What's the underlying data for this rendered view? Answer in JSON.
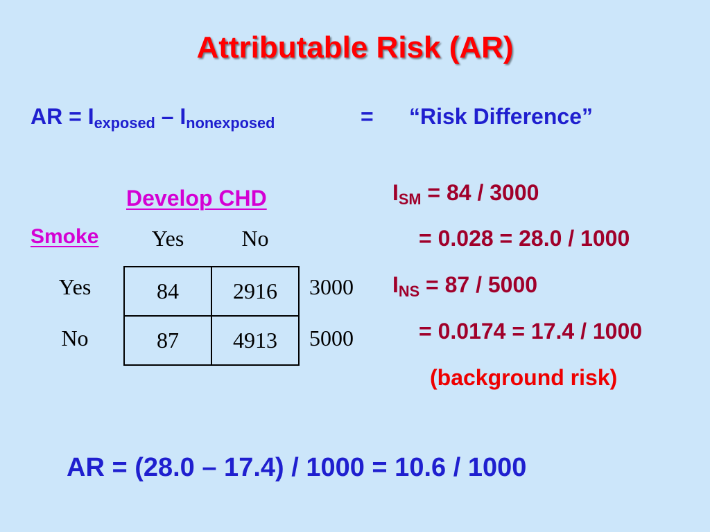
{
  "title": "Attributable Risk (AR)",
  "definition": {
    "ar_prefix": "AR = I",
    "sub_exposed": "exposed",
    "minus": " – I",
    "sub_nonexposed": "nonexposed",
    "equals": "=",
    "risk_difference": "“Risk Difference”"
  },
  "table": {
    "column_header": "Develop CHD",
    "row_header": "Smoke",
    "col_labels": [
      "Yes",
      "No"
    ],
    "rows": [
      {
        "label": "Yes",
        "yes": "84",
        "no": "2916",
        "total": "3000"
      },
      {
        "label": "No",
        "yes": "87",
        "no": "4913",
        "total": "5000"
      }
    ]
  },
  "calc": {
    "i_letter": "I",
    "sm_sub": "SM",
    "sm_expr": " = 84 / 3000",
    "sm_result": "= 0.028 = 28.0 / 1000",
    "ns_sub": "NS",
    "ns_expr": " = 87 / 5000",
    "ns_result": "= 0.0174 = 17.4 / 1000",
    "background_note": "(background risk)"
  },
  "result": "AR = (28.0 – 17.4) / 1000 = 10.6 / 1000",
  "colors": {
    "background": "#cce6fa",
    "title": "#ff0000",
    "blue_text": "#1f1fcf",
    "maroon_text": "#a0002a",
    "magenta_text": "#d400d4"
  }
}
